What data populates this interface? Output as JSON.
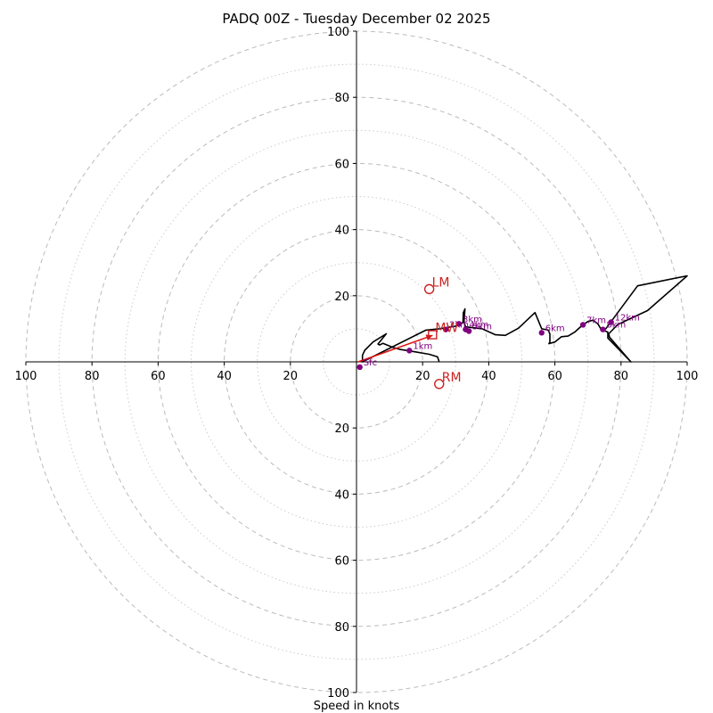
{
  "chart_data": {
    "type": "hodograph",
    "title": "PADQ 00Z - Tuesday December 02 2025",
    "xlabel": "Speed in knots",
    "rings_major": [
      20,
      40,
      60,
      80,
      100
    ],
    "rings_minor": [
      10,
      30,
      50,
      70,
      90
    ],
    "xlim": [
      -100,
      100
    ],
    "ylim": [
      -100,
      100
    ],
    "x_ticks": [
      {
        "value": -100,
        "label": "100"
      },
      {
        "value": -80,
        "label": "80"
      },
      {
        "value": -60,
        "label": "60"
      },
      {
        "value": -40,
        "label": "40"
      },
      {
        "value": -20,
        "label": "20"
      },
      {
        "value": 20,
        "label": "20"
      },
      {
        "value": 40,
        "label": "40"
      },
      {
        "value": 60,
        "label": "60"
      },
      {
        "value": 80,
        "label": "80"
      },
      {
        "value": 100,
        "label": "100"
      }
    ],
    "y_ticks": [
      {
        "value": 100,
        "label": "100"
      },
      {
        "value": 80,
        "label": "80"
      },
      {
        "value": 60,
        "label": "60"
      },
      {
        "value": 40,
        "label": "40"
      },
      {
        "value": 20,
        "label": "20"
      },
      {
        "value": -20,
        "label": "20"
      },
      {
        "value": -40,
        "label": "40"
      },
      {
        "value": -60,
        "label": "60"
      },
      {
        "value": -80,
        "label": "80"
      },
      {
        "value": -100,
        "label": "100"
      }
    ],
    "hodograph": [
      [
        25,
        0
      ],
      [
        24.5,
        1.5
      ],
      [
        22,
        2.3
      ],
      [
        18,
        3
      ],
      [
        13,
        3.8
      ],
      [
        11,
        4.4
      ],
      [
        8,
        5.6
      ],
      [
        7,
        5.1
      ],
      [
        6.5,
        5.4
      ],
      [
        9,
        8.5
      ],
      [
        5,
        6
      ],
      [
        2.5,
        3.5
      ],
      [
        1.8,
        2
      ],
      [
        1.8,
        0
      ],
      [
        21,
        9.6
      ],
      [
        25,
        10
      ],
      [
        30,
        10.8
      ],
      [
        31.5,
        11.3
      ],
      [
        32.2,
        12
      ],
      [
        32.3,
        14.8
      ],
      [
        32.8,
        16
      ],
      [
        32.5,
        12
      ],
      [
        33,
        10.6
      ],
      [
        38,
        10
      ],
      [
        42,
        8.2
      ],
      [
        45,
        8
      ],
      [
        49,
        10.2
      ],
      [
        54,
        14.9
      ],
      [
        56,
        10
      ],
      [
        58,
        9.6
      ],
      [
        58.5,
        8.4
      ],
      [
        58.5,
        6
      ],
      [
        58.2,
        5.5
      ],
      [
        60,
        6
      ],
      [
        62,
        7.6
      ],
      [
        64,
        7.8
      ],
      [
        66,
        9
      ],
      [
        68,
        10.8
      ],
      [
        70,
        12.2
      ],
      [
        71.5,
        12.6
      ],
      [
        73,
        11.5
      ],
      [
        74,
        9.8
      ],
      [
        76,
        9
      ],
      [
        76,
        7.2
      ],
      [
        76.2,
        7
      ],
      [
        83,
        0
      ],
      [
        76.5,
        7.5
      ],
      [
        76.3,
        8.5
      ],
      [
        79,
        11.3
      ],
      [
        88,
        15.5
      ],
      [
        100,
        26
      ],
      [
        85,
        23
      ],
      [
        75,
        9.5
      ]
    ],
    "km_points": [
      {
        "label": "Sfc",
        "u": 1,
        "v": -1.6
      },
      {
        "label": "1km",
        "u": 16,
        "v": 3.4
      },
      {
        "label": "2km",
        "u": 27,
        "v": 9.8
      },
      {
        "label": "3km",
        "u": 31,
        "v": 11.5
      },
      {
        "label": "4km",
        "u": 33,
        "v": 9.8
      },
      {
        "label": "5km",
        "u": 34,
        "v": 9.3
      },
      {
        "label": "6km",
        "u": 56,
        "v": 8.8
      },
      {
        "label": "7km",
        "u": 68.5,
        "v": 11.2
      },
      {
        "label": "8km",
        "u": 74.5,
        "v": 9.8
      },
      {
        "label": "12km",
        "u": 77,
        "v": 12
      }
    ],
    "shear_vector": {
      "from": [
        0.5,
        0
      ],
      "to": [
        23,
        8
      ],
      "color": "#e0110f"
    },
    "markers": [
      {
        "label": "LM",
        "u": 22,
        "v": 22
      },
      {
        "label": "MW",
        "u": 23,
        "v": 8.2
      },
      {
        "label": "RM",
        "u": 25,
        "v": -6.7
      }
    ],
    "colors": {
      "hodograph": "#000000",
      "km_points": "#800080",
      "markers": "#cc2222",
      "shear": "#e0110f",
      "major_ring": "#bbbbbb",
      "minor_ring": "#cccccc"
    }
  }
}
